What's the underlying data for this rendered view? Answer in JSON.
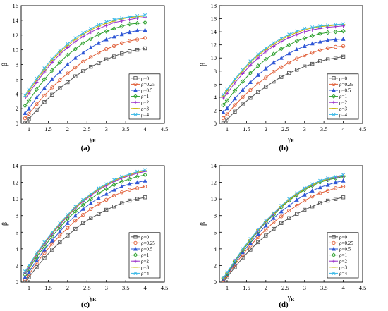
{
  "colors": {
    "ρ=0": "#555555",
    "ρ=0.25": "#e0603a",
    "ρ=0.5": "#2e56d6",
    "ρ=1": "#2ca02c",
    "ρ=2": "#9b30c9",
    "ρ=3": "#c8b400",
    "ρ=4": "#36b7e6"
  },
  "markers": {
    "ρ=0": "square",
    "ρ=0.25": "circle",
    "ρ=0.5": "triangle",
    "ρ=1": "diamond",
    "ρ=2": "plus",
    "ρ=3": "dash",
    "ρ=4": "x"
  },
  "chart_data": [
    {
      "panel_label": "(a)",
      "type": "line",
      "xlabel": "γR",
      "ylabel": "β",
      "xlim": [
        0.8,
        4.5
      ],
      "ylim": [
        0,
        16
      ],
      "xticks": [
        1.0,
        1.5,
        2.0,
        2.5,
        3.0,
        3.5,
        4.0,
        4.5
      ],
      "yticks": [
        0,
        2,
        4,
        6,
        8,
        10,
        12,
        14,
        16
      ],
      "x": [
        0.9,
        1.0,
        1.2,
        1.4,
        1.6,
        1.8,
        2.0,
        2.2,
        2.4,
        2.6,
        2.8,
        3.0,
        3.2,
        3.4,
        3.6,
        3.8,
        4.0
      ],
      "series": [
        {
          "name": "ρ=0",
          "values": [
            0.0,
            0.6,
            1.8,
            2.9,
            3.9,
            4.8,
            5.6,
            6.4,
            7.1,
            7.7,
            8.2,
            8.7,
            9.1,
            9.5,
            9.8,
            10.0,
            10.2
          ]
        },
        {
          "name": "ρ=0.25",
          "values": [
            0.7,
            1.3,
            2.6,
            3.8,
            4.9,
            5.9,
            6.8,
            7.6,
            8.4,
            9.0,
            9.6,
            10.1,
            10.5,
            10.9,
            11.2,
            11.4,
            11.6
          ]
        },
        {
          "name": "ρ=0.5",
          "values": [
            1.4,
            2.0,
            3.5,
            4.8,
            6.0,
            7.0,
            8.0,
            8.9,
            9.6,
            10.3,
            10.9,
            11.4,
            11.8,
            12.1,
            12.4,
            12.6,
            12.7
          ]
        },
        {
          "name": "ρ=1",
          "values": [
            2.4,
            3.1,
            4.6,
            6.0,
            7.2,
            8.3,
            9.3,
            10.1,
            10.9,
            11.5,
            12.1,
            12.5,
            12.9,
            13.2,
            13.5,
            13.6,
            13.7
          ]
        },
        {
          "name": "ρ=2",
          "values": [
            3.3,
            4.1,
            5.6,
            7.0,
            8.3,
            9.4,
            10.3,
            11.1,
            11.8,
            12.4,
            12.9,
            13.3,
            13.7,
            13.9,
            14.1,
            14.3,
            14.4
          ]
        },
        {
          "name": "ρ=3",
          "values": [
            3.6,
            4.4,
            5.9,
            7.3,
            8.6,
            9.7,
            10.6,
            11.4,
            12.1,
            12.7,
            13.2,
            13.6,
            13.9,
            14.2,
            14.4,
            14.5,
            14.6
          ]
        },
        {
          "name": "ρ=4",
          "values": [
            3.8,
            4.6,
            6.1,
            7.5,
            8.8,
            9.9,
            10.8,
            11.6,
            12.3,
            12.9,
            13.4,
            13.8,
            14.1,
            14.3,
            14.5,
            14.6,
            14.7
          ]
        }
      ]
    },
    {
      "panel_label": "(b)",
      "type": "line",
      "xlabel": "γR",
      "ylabel": "β",
      "xlim": [
        0.8,
        4.5
      ],
      "ylim": [
        0,
        18
      ],
      "xticks": [
        1.0,
        1.5,
        2.0,
        2.5,
        3.0,
        3.5,
        4.0,
        4.5
      ],
      "yticks": [
        0,
        2,
        4,
        6,
        8,
        10,
        12,
        14,
        16,
        18
      ],
      "x": [
        0.9,
        1.0,
        1.2,
        1.4,
        1.6,
        1.8,
        2.0,
        2.2,
        2.4,
        2.6,
        2.8,
        3.0,
        3.2,
        3.4,
        3.6,
        3.8,
        4.0
      ],
      "series": [
        {
          "name": "ρ=0",
          "values": [
            0.0,
            0.6,
            1.8,
            2.9,
            3.9,
            4.8,
            5.6,
            6.4,
            7.1,
            7.7,
            8.2,
            8.7,
            9.1,
            9.5,
            9.8,
            10.0,
            10.2
          ]
        },
        {
          "name": "ρ=0.25",
          "values": [
            0.8,
            1.4,
            2.8,
            4.0,
            5.1,
            6.1,
            7.0,
            7.9,
            8.6,
            9.3,
            9.9,
            10.4,
            10.8,
            11.2,
            11.5,
            11.7,
            11.8
          ]
        },
        {
          "name": "ρ=0.5",
          "values": [
            1.7,
            2.3,
            3.8,
            5.1,
            6.3,
            7.4,
            8.4,
            9.3,
            10.0,
            10.7,
            11.3,
            11.8,
            12.2,
            12.5,
            12.7,
            12.8,
            12.9
          ]
        },
        {
          "name": "ρ=1",
          "values": [
            2.8,
            3.5,
            5.0,
            6.4,
            7.7,
            8.8,
            9.8,
            10.6,
            11.4,
            12.0,
            12.6,
            13.0,
            13.4,
            13.7,
            13.9,
            14.0,
            14.1
          ]
        },
        {
          "name": "ρ=2",
          "values": [
            3.9,
            4.6,
            6.2,
            7.6,
            8.9,
            10.0,
            11.0,
            11.8,
            12.5,
            13.1,
            13.6,
            14.0,
            14.3,
            14.5,
            14.7,
            14.8,
            14.9
          ]
        },
        {
          "name": "ρ=3",
          "values": [
            4.2,
            5.0,
            6.6,
            8.0,
            9.3,
            10.4,
            11.3,
            12.1,
            12.8,
            13.4,
            13.9,
            14.3,
            14.6,
            14.8,
            14.9,
            15.0,
            15.1
          ]
        },
        {
          "name": "ρ=4",
          "values": [
            4.4,
            5.2,
            6.8,
            8.2,
            9.5,
            10.6,
            11.5,
            12.3,
            13.0,
            13.6,
            14.1,
            14.5,
            14.7,
            14.9,
            15.0,
            15.1,
            15.2
          ]
        }
      ]
    },
    {
      "panel_label": "(c)",
      "type": "line",
      "xlabel": "γR",
      "ylabel": "β",
      "xlim": [
        0.8,
        4.5
      ],
      "ylim": [
        0,
        14
      ],
      "xticks": [
        1.0,
        1.5,
        2.0,
        2.5,
        3.0,
        3.5,
        4.0,
        4.5
      ],
      "yticks": [
        0,
        2,
        4,
        6,
        8,
        10,
        12,
        14
      ],
      "x": [
        0.9,
        1.0,
        1.2,
        1.4,
        1.6,
        1.8,
        2.0,
        2.2,
        2.4,
        2.6,
        2.8,
        3.0,
        3.2,
        3.4,
        3.6,
        3.8,
        4.0
      ],
      "series": [
        {
          "name": "ρ=0",
          "values": [
            0.0,
            0.6,
            1.8,
            2.9,
            3.9,
            4.8,
            5.6,
            6.4,
            7.1,
            7.7,
            8.2,
            8.7,
            9.1,
            9.5,
            9.8,
            10.0,
            10.2
          ]
        },
        {
          "name": "ρ=0.25",
          "values": [
            0.3,
            0.9,
            2.3,
            3.5,
            4.6,
            5.6,
            6.5,
            7.4,
            8.1,
            8.8,
            9.4,
            9.9,
            10.4,
            10.8,
            11.1,
            11.3,
            11.5
          ]
        },
        {
          "name": "ρ=0.5",
          "values": [
            0.6,
            1.2,
            2.6,
            3.9,
            5.0,
            6.1,
            7.1,
            8.0,
            8.8,
            9.5,
            10.1,
            10.6,
            11.1,
            11.5,
            11.8,
            12.0,
            12.2
          ]
        },
        {
          "name": "ρ=1",
          "values": [
            0.9,
            1.6,
            3.0,
            4.3,
            5.5,
            6.6,
            7.6,
            8.5,
            9.3,
            10.0,
            10.7,
            11.2,
            11.7,
            12.1,
            12.4,
            12.7,
            12.9
          ]
        },
        {
          "name": "ρ=2",
          "values": [
            1.1,
            1.8,
            3.3,
            4.6,
            5.8,
            6.9,
            7.9,
            8.9,
            9.7,
            10.4,
            11.1,
            11.6,
            12.1,
            12.5,
            12.8,
            13.1,
            13.3
          ]
        },
        {
          "name": "ρ=3",
          "values": [
            1.2,
            1.9,
            3.4,
            4.7,
            5.9,
            7.0,
            8.0,
            9.0,
            9.8,
            10.5,
            11.2,
            11.7,
            12.2,
            12.6,
            12.9,
            13.2,
            13.4
          ]
        },
        {
          "name": "ρ=4",
          "values": [
            1.3,
            2.0,
            3.5,
            4.8,
            6.0,
            7.1,
            8.1,
            9.1,
            9.9,
            10.6,
            11.3,
            11.8,
            12.3,
            12.7,
            13.0,
            13.3,
            13.5
          ]
        }
      ]
    },
    {
      "panel_label": "(d)",
      "type": "line",
      "xlabel": "γR",
      "ylabel": "β",
      "xlim": [
        0.8,
        4.5
      ],
      "ylim": [
        0,
        14
      ],
      "xticks": [
        1.0,
        1.5,
        2.0,
        2.5,
        3.0,
        3.5,
        4.0,
        4.5
      ],
      "yticks": [
        0,
        2,
        4,
        6,
        8,
        10,
        12,
        14
      ],
      "x": [
        0.9,
        1.0,
        1.2,
        1.4,
        1.6,
        1.8,
        2.0,
        2.2,
        2.4,
        2.6,
        2.8,
        3.0,
        3.2,
        3.4,
        3.6,
        3.8,
        4.0
      ],
      "series": [
        {
          "name": "ρ=0",
          "values": [
            0.0,
            0.6,
            1.8,
            2.9,
            3.9,
            4.8,
            5.6,
            6.4,
            7.1,
            7.7,
            8.2,
            8.7,
            9.1,
            9.5,
            9.8,
            10.0,
            10.2
          ]
        },
        {
          "name": "ρ=0.25",
          "values": [
            0.2,
            0.8,
            2.1,
            3.3,
            4.4,
            5.4,
            6.3,
            7.2,
            7.9,
            8.6,
            9.2,
            9.8,
            10.3,
            10.7,
            11.0,
            11.3,
            11.5
          ]
        },
        {
          "name": "ρ=0.5",
          "values": [
            0.3,
            0.9,
            2.3,
            3.6,
            4.7,
            5.8,
            6.8,
            7.7,
            8.5,
            9.2,
            9.9,
            10.5,
            11.0,
            11.4,
            11.7,
            12.0,
            12.2
          ]
        },
        {
          "name": "ρ=1",
          "values": [
            0.4,
            1.0,
            2.5,
            3.8,
            5.0,
            6.1,
            7.2,
            8.1,
            9.0,
            9.8,
            10.5,
            11.1,
            11.6,
            12.0,
            12.3,
            12.5,
            12.7
          ]
        },
        {
          "name": "ρ=2",
          "values": [
            0.4,
            1.1,
            2.6,
            3.9,
            5.1,
            6.2,
            7.3,
            8.2,
            9.1,
            9.9,
            10.6,
            11.2,
            11.7,
            12.1,
            12.4,
            12.6,
            12.8
          ]
        },
        {
          "name": "ρ=3",
          "values": [
            0.5,
            1.1,
            2.6,
            3.9,
            5.1,
            6.3,
            7.3,
            8.3,
            9.1,
            9.9,
            10.6,
            11.2,
            11.7,
            12.1,
            12.4,
            12.7,
            12.8
          ]
        },
        {
          "name": "ρ=4",
          "values": [
            0.5,
            1.2,
            2.6,
            4.0,
            5.2,
            6.3,
            7.4,
            8.3,
            9.2,
            10.0,
            10.7,
            11.3,
            11.8,
            12.2,
            12.5,
            12.7,
            12.9
          ]
        }
      ]
    }
  ]
}
